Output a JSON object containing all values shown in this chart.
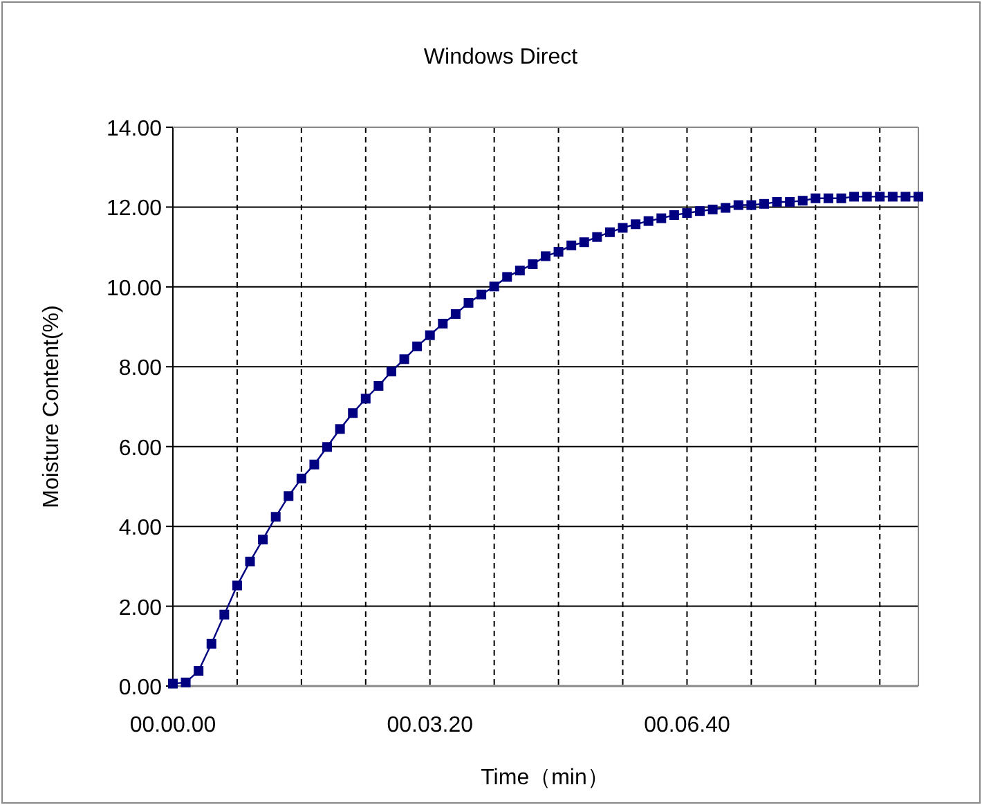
{
  "chart_data": {
    "type": "line",
    "title": "Windows Direct",
    "xlabel": "Time（min）",
    "ylabel": "Moisture Content(%)",
    "categories": [
      "00.00.00",
      null,
      null,
      null,
      null,
      null,
      null,
      null,
      null,
      null,
      null,
      null,
      null,
      null,
      null,
      null,
      null,
      null,
      null,
      null,
      "00.03.20",
      null,
      null,
      null,
      null,
      null,
      null,
      null,
      null,
      null,
      null,
      null,
      null,
      null,
      null,
      null,
      null,
      null,
      null,
      null,
      "00.06.40",
      null,
      null,
      null,
      null,
      null,
      null,
      null,
      null,
      null,
      null,
      null,
      null,
      null,
      null,
      null,
      null,
      null,
      null
    ],
    "series": [
      {
        "color": "#000080",
        "values": [
          0.06,
          0.09,
          0.38,
          1.06,
          1.79,
          2.52,
          3.12,
          3.67,
          4.24,
          4.76,
          5.2,
          5.55,
          5.99,
          6.44,
          6.84,
          7.2,
          7.52,
          7.88,
          8.19,
          8.51,
          8.79,
          9.08,
          9.32,
          9.6,
          9.81,
          10.01,
          10.25,
          10.41,
          10.57,
          10.77,
          10.88,
          11.04,
          11.12,
          11.25,
          11.37,
          11.48,
          11.57,
          11.65,
          11.72,
          11.8,
          11.85,
          11.9,
          11.94,
          11.98,
          12.05,
          12.05,
          12.08,
          12.13,
          12.13,
          12.16,
          12.22,
          12.22,
          12.22,
          12.26,
          12.26,
          12.26,
          12.26,
          12.26,
          12.26
        ]
      }
    ],
    "ylim": [
      0,
      14
    ],
    "yticks": [
      {
        "value": 0,
        "label": "0.00"
      },
      {
        "value": 2,
        "label": "2.00"
      },
      {
        "value": 4,
        "label": "4.00"
      },
      {
        "value": 6,
        "label": "6.00"
      },
      {
        "value": 8,
        "label": "8.00"
      },
      {
        "value": 10,
        "label": "10.00"
      },
      {
        "value": 12,
        "label": "12.00"
      },
      {
        "value": 14,
        "label": "14.00"
      }
    ],
    "grid": true,
    "marker": "square",
    "line_style": "solid"
  }
}
